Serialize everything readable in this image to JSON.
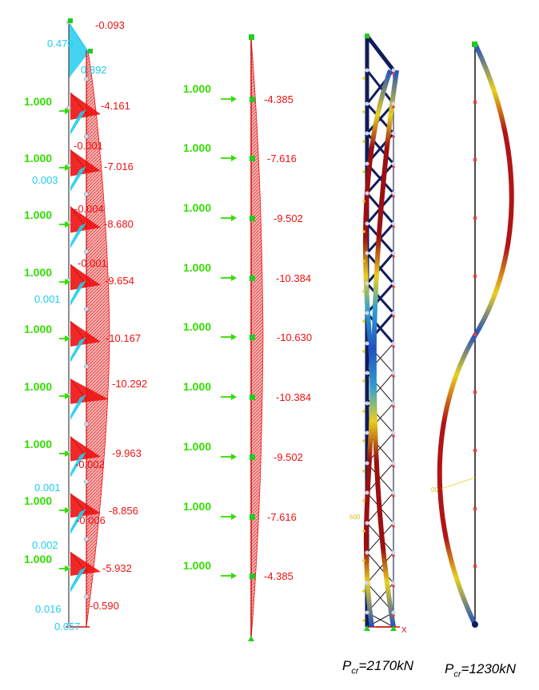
{
  "colors": {
    "diagram_fill": "#ee1111",
    "load_arrow": "#33dd00",
    "member_cyan": "#22ccee",
    "dark_frame": "#101c5a",
    "mode_high": "#9b1010",
    "mode_mid": "#e8d020",
    "mode_low": "#2050c0"
  },
  "panel1": {
    "load_labels": [
      "1.000",
      "1.000",
      "1.000",
      "1.000",
      "1.000",
      "1.000",
      "1.000",
      "1.000",
      "1.000"
    ],
    "chord_values": [
      "-0.093",
      "-4.161",
      "-7.016",
      "-8.680",
      "-9.654",
      "-10.167",
      "-10.292",
      "-9.963",
      "-8.856",
      "-5.932",
      "-0.590"
    ],
    "cyan_values": [
      "0.470",
      "0.392",
      "0.003",
      "0.001",
      "0.001",
      "0.002",
      "0.016",
      "0.057"
    ],
    "small_red_values": [
      "-0.001",
      "-0.004",
      "-0.001",
      "-0.002",
      "-0.006"
    ]
  },
  "panel2": {
    "load_labels": [
      "1.000",
      "1.000",
      "1.000",
      "1.000",
      "1.000",
      "1.000",
      "1.000",
      "1.000",
      "1.000"
    ],
    "values": [
      "-4.385",
      "-7.616",
      "-9.502",
      "-10.384",
      "-10.630",
      "-10.384",
      "-9.502",
      "-7.616",
      "-4.385"
    ]
  },
  "panel3": {
    "side_tag": "600",
    "axis_tag": "X"
  },
  "panel4": {
    "side_tag": "00"
  },
  "captions": {
    "p_label": "P",
    "p_sub": "cr",
    "left_value": "=2170kN",
    "right_value": "=1230kN"
  }
}
